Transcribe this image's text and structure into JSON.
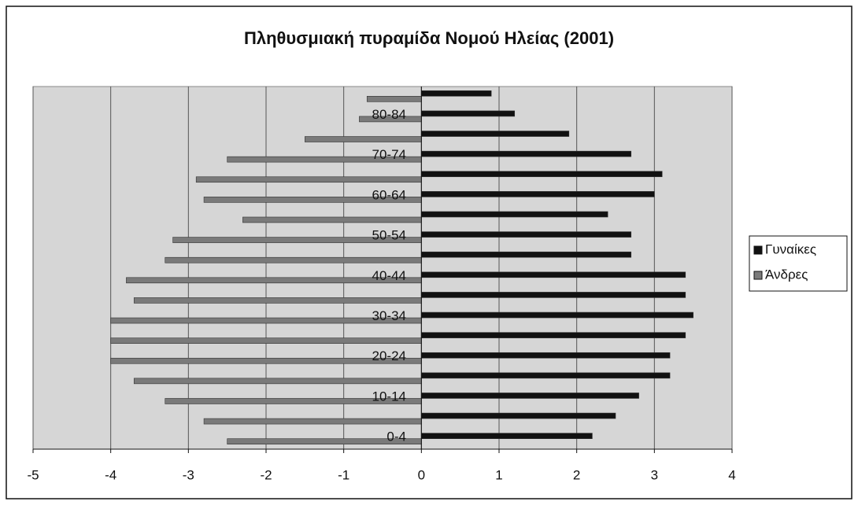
{
  "chart_data": {
    "type": "bar",
    "orientation": "horizontal",
    "title": "Πληθυσμιακή πυραμίδα Νομού Ηλείας (2001)",
    "categories": [
      "0-4",
      null,
      "10-14",
      null,
      "20-24",
      null,
      "30-34",
      null,
      "40-44",
      null,
      "50-54",
      null,
      "60-64",
      null,
      "70-74",
      null,
      "80-84",
      null
    ],
    "series": [
      {
        "name": "Γυναίκες",
        "color": "#111111",
        "values": [
          2.2,
          2.5,
          2.8,
          3.2,
          3.2,
          3.4,
          3.5,
          3.4,
          3.4,
          2.7,
          2.7,
          2.4,
          3.0,
          3.1,
          2.7,
          1.9,
          1.2,
          0.9
        ]
      },
      {
        "name": "Άνδρες",
        "color": "#7a7a7a",
        "values": [
          -2.5,
          -2.8,
          -3.3,
          -3.7,
          -4.0,
          -4.0,
          -4.0,
          -3.7,
          -3.8,
          -3.3,
          -3.2,
          -2.3,
          -2.8,
          -2.9,
          -2.5,
          -1.5,
          -0.8,
          -0.7
        ]
      }
    ],
    "xlim": [
      -5,
      4
    ],
    "xticks": [
      -5,
      -4,
      -3,
      -2,
      -1,
      0,
      1,
      2,
      3,
      4
    ],
    "grid": true,
    "legend": "right"
  }
}
